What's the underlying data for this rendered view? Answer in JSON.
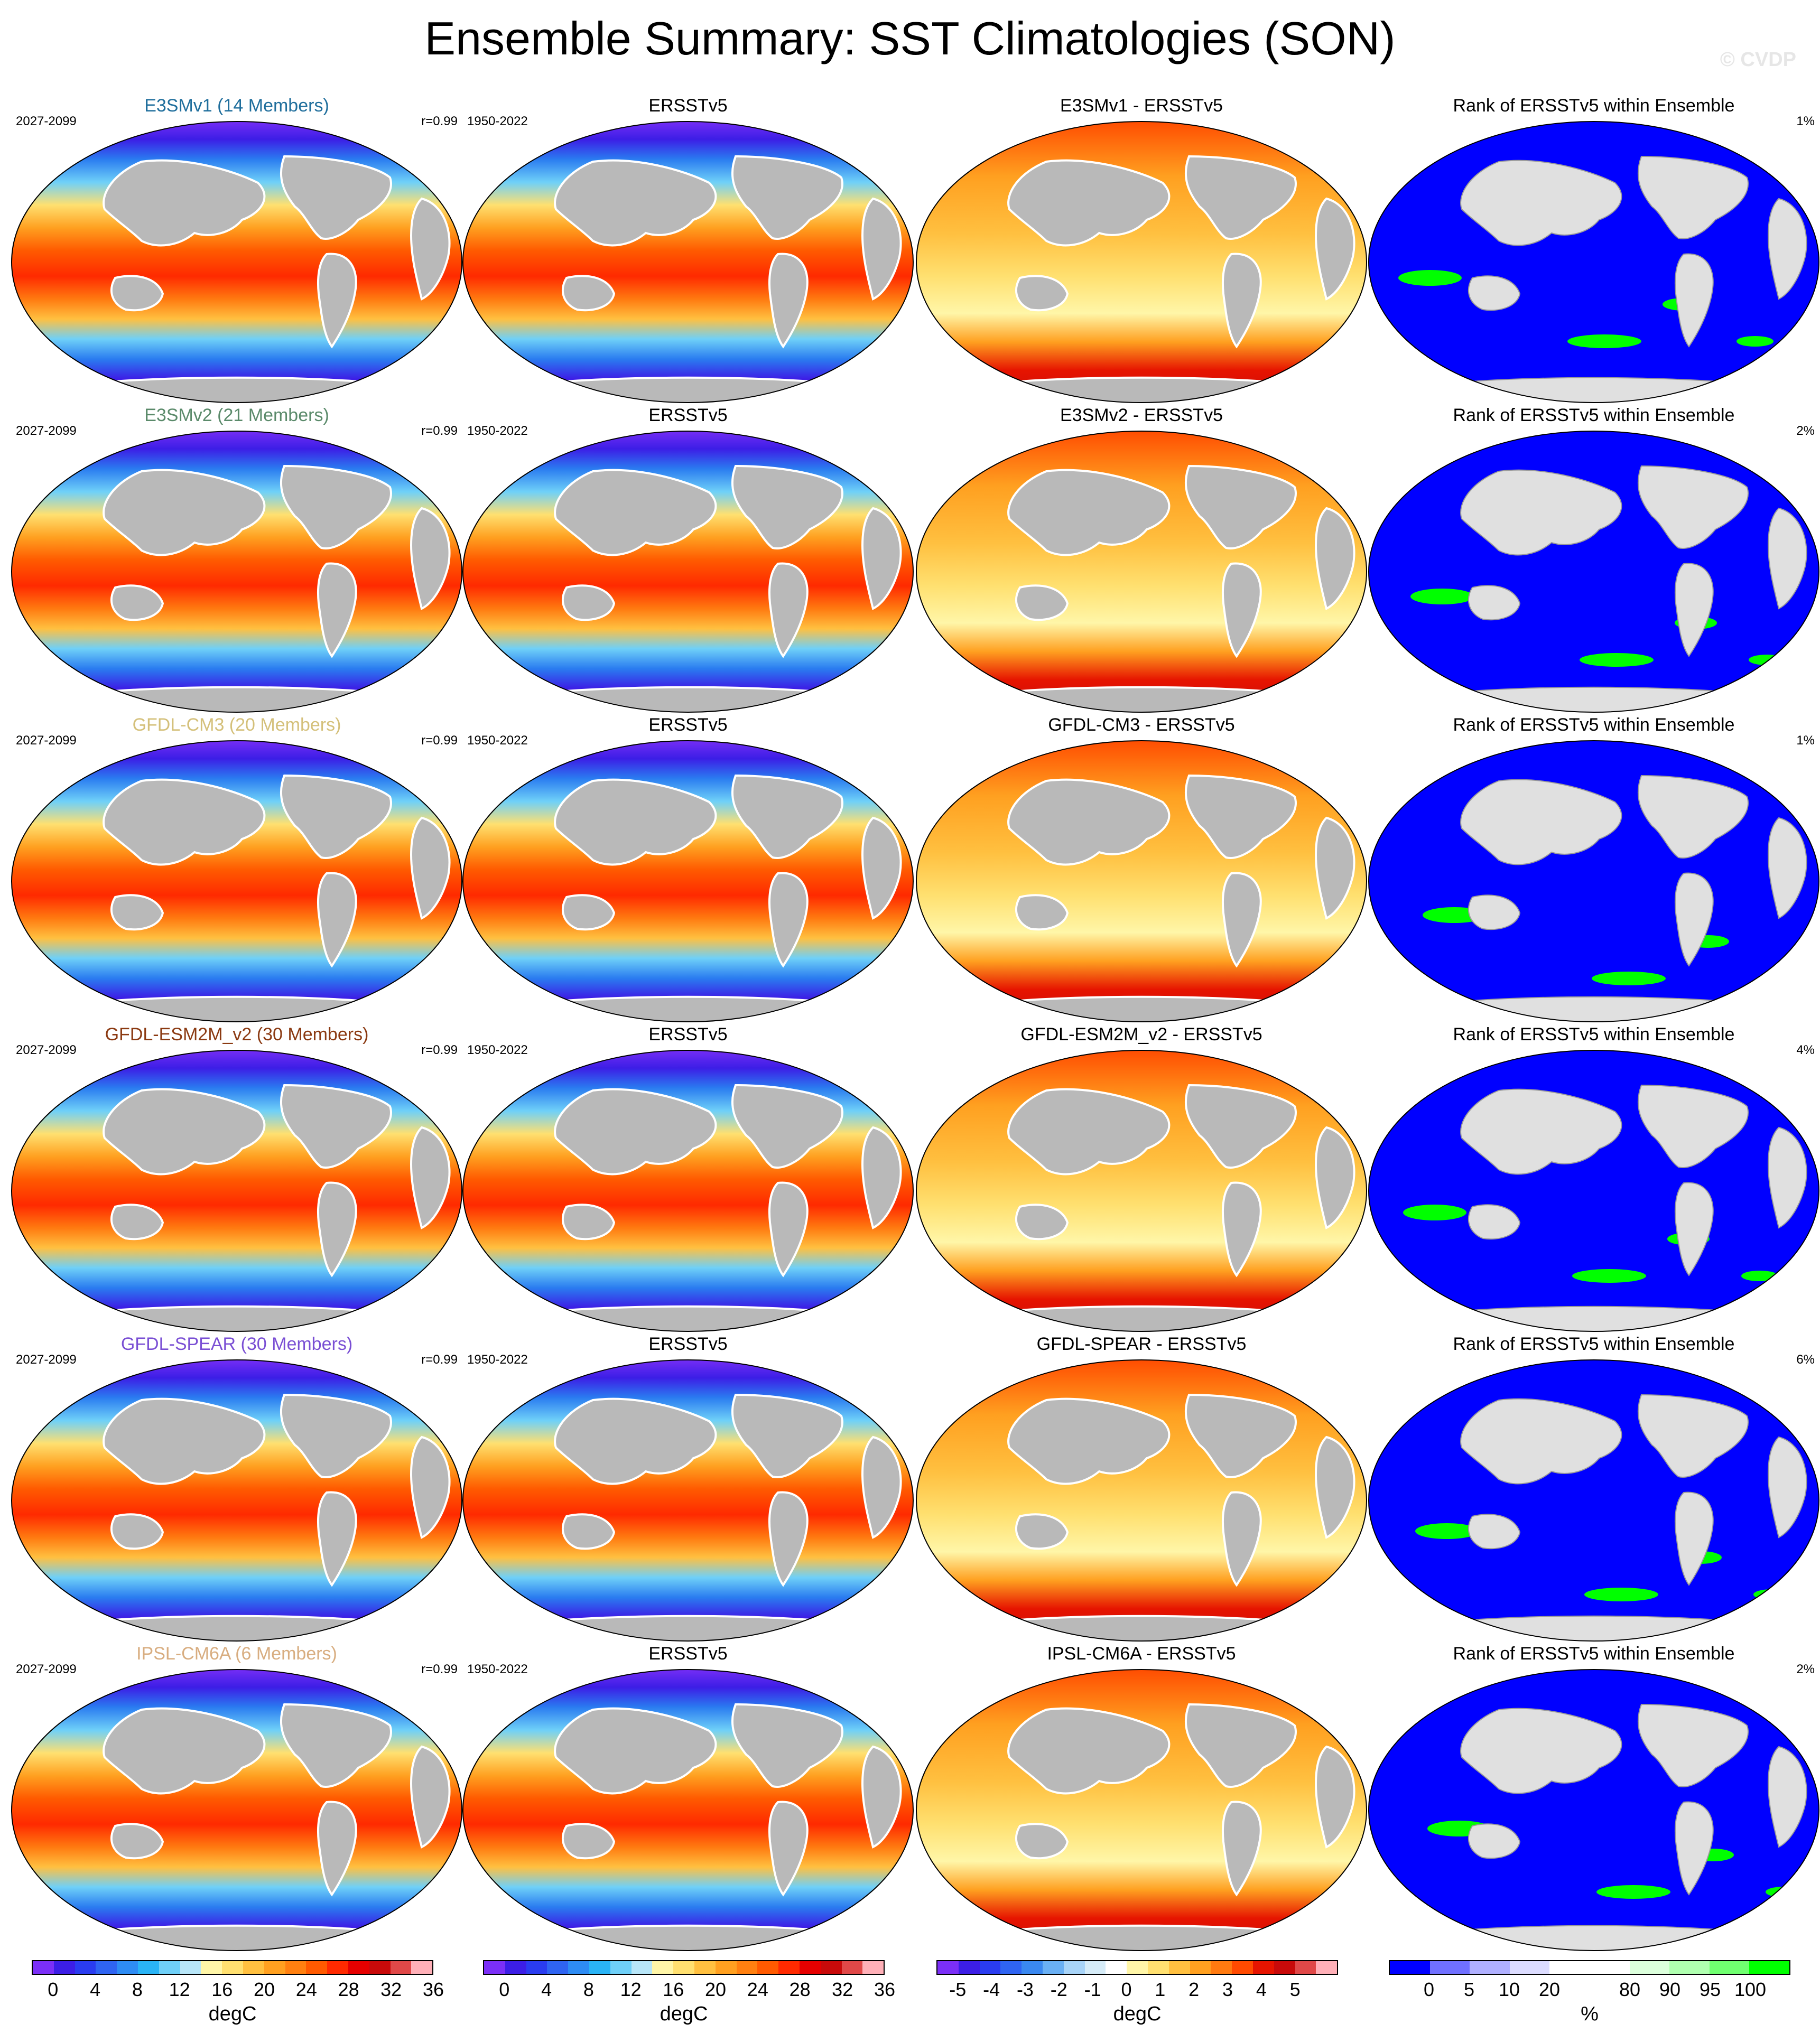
{
  "title": "Ensemble Summary: SST Climatologies (SON)",
  "watermark": "© CVDP",
  "column_model": {
    "reference": "ERSSTv5",
    "obs_period": "1950-2022",
    "rank_title": "Rank of ERSSTv5 within Ensemble"
  },
  "rows": [
    {
      "model_title": "E3SMv1 (14 Members)",
      "model_color": "#1f6e9c",
      "period": "2027-2099",
      "corr": "r=0.99",
      "diff_title": "E3SMv1 - ERSSTv5",
      "rank_pct": "1%"
    },
    {
      "model_title": "E3SMv2 (21 Members)",
      "model_color": "#5a8a6a",
      "period": "2027-2099",
      "corr": "r=0.99",
      "diff_title": "E3SMv2 - ERSSTv5",
      "rank_pct": "2%"
    },
    {
      "model_title": "GFDL-CM3 (20 Members)",
      "model_color": "#d4c07a",
      "period": "2027-2099",
      "corr": "r=0.99",
      "diff_title": "GFDL-CM3 - ERSSTv5",
      "rank_pct": "1%"
    },
    {
      "model_title": "GFDL-ESM2M_v2 (30 Members)",
      "model_color": "#8b3a12",
      "period": "2027-2099",
      "corr": "r=0.99",
      "diff_title": "GFDL-ESM2M_v2 - ERSSTv5",
      "rank_pct": "4%"
    },
    {
      "model_title": "GFDL-SPEAR (30 Members)",
      "model_color": "#7a4fd4",
      "period": "2027-2099",
      "corr": "r=0.99",
      "diff_title": "GFDL-SPEAR - ERSSTv5",
      "rank_pct": "6%"
    },
    {
      "model_title": "IPSL-CM6A (6 Members)",
      "model_color": "#d8ad80",
      "period": "2027-2099",
      "corr": "r=0.99",
      "diff_title": "IPSL-CM6A - ERSSTv5",
      "rank_pct": "2%"
    }
  ],
  "colorbars": [
    {
      "units": "degC",
      "colors": [
        "#7b2ff7",
        "#3c1ee6",
        "#2a3cf0",
        "#2f64f2",
        "#2e8cf4",
        "#2ab4f6",
        "#6fd0f8",
        "#b8e6f8",
        "#fff6a8",
        "#ffe070",
        "#ffc040",
        "#ffa020",
        "#ff8010",
        "#ff5a00",
        "#ff2a00",
        "#e60000",
        "#c80a0a",
        "#e04848",
        "#ffb0b8"
      ],
      "ticks": [
        "0",
        "4",
        "8",
        "12",
        "16",
        "20",
        "24",
        "28",
        "32",
        "36"
      ]
    },
    {
      "units": "degC",
      "colors": [
        "#7b2ff7",
        "#3c1ee6",
        "#2a3cf0",
        "#2f64f2",
        "#2e8cf4",
        "#2ab4f6",
        "#6fd0f8",
        "#b8e6f8",
        "#fff6a8",
        "#ffe070",
        "#ffc040",
        "#ffa020",
        "#ff8010",
        "#ff5a00",
        "#ff2a00",
        "#e60000",
        "#c80a0a",
        "#e04848",
        "#ffb0b8"
      ],
      "ticks": [
        "0",
        "4",
        "8",
        "12",
        "16",
        "20",
        "24",
        "28",
        "32",
        "36"
      ]
    },
    {
      "units": "degC",
      "colors": [
        "#7b2ff7",
        "#3c1ee6",
        "#2a3cf0",
        "#2f64f2",
        "#3a88f0",
        "#6ab0f4",
        "#a8d4f8",
        "#d6ecf8",
        "#ffffff",
        "#fff6a8",
        "#ffe070",
        "#ffc040",
        "#ffa020",
        "#ff7a10",
        "#ff4a00",
        "#e61400",
        "#c80a0a",
        "#e04848",
        "#ffb0b8"
      ],
      "ticks": [
        "-5",
        "-4",
        "-3",
        "-2",
        "-1",
        "0",
        "1",
        "2",
        "3",
        "4",
        "5"
      ]
    },
    {
      "units": "%",
      "colors": [
        "#0000ff",
        "#7070ff",
        "#b0b0ff",
        "#dcdcff",
        "#ffffff",
        "#ffffff",
        "#dcffdc",
        "#b0ffb0",
        "#70ff70",
        "#00ff00"
      ],
      "ticks": [
        "0",
        "5",
        "10",
        "20",
        "80",
        "90",
        "95",
        "100"
      ]
    }
  ]
}
